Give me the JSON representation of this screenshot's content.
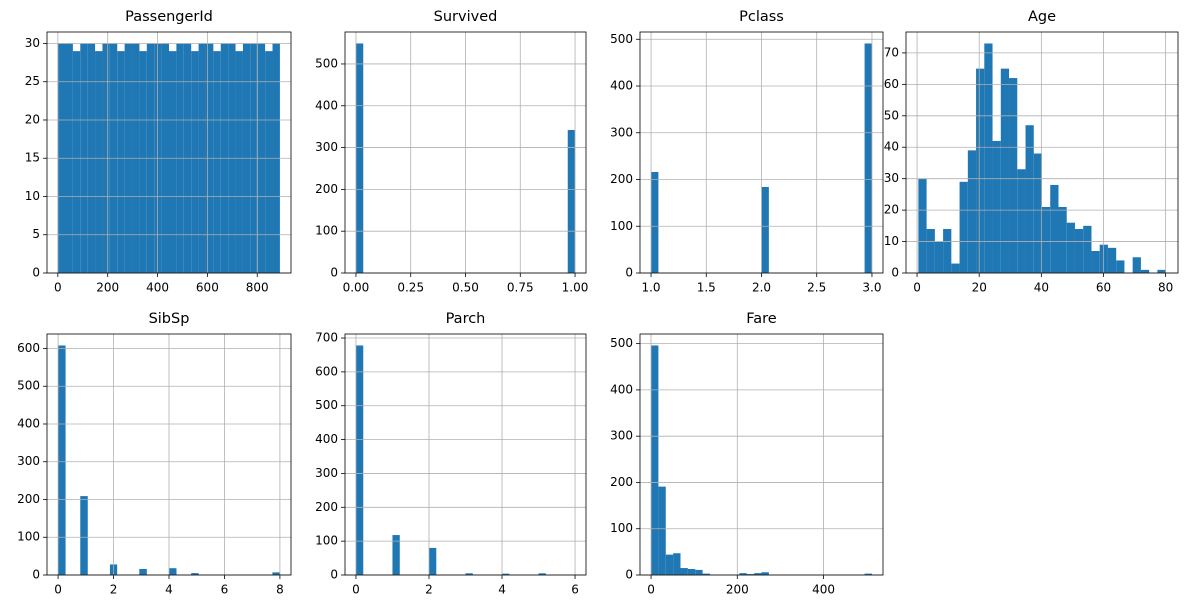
{
  "chart_data": [
    {
      "type": "histogram",
      "title": "PassengerId",
      "color": "#1f77b4",
      "grid": true,
      "bins": [
        1,
        30.67,
        60.33,
        90,
        119.67,
        149.33,
        179,
        208.67,
        238.33,
        268,
        297.67,
        327.33,
        357,
        386.67,
        416.33,
        446,
        475.67,
        505.33,
        535,
        564.67,
        594.33,
        624,
        653.67,
        683.33,
        713,
        742.67,
        772.33,
        802,
        831.67,
        861.33,
        891
      ],
      "values": [
        30,
        30,
        29,
        30,
        30,
        29,
        30,
        30,
        29,
        30,
        30,
        29,
        30,
        30,
        30,
        29,
        30,
        30,
        29,
        30,
        30,
        29,
        30,
        30,
        29,
        30,
        30,
        30,
        29,
        30
      ],
      "xlim": [
        -43.5,
        935.5
      ],
      "xticks": [
        0,
        200,
        400,
        600,
        800
      ],
      "ylim": [
        0,
        31.5
      ],
      "yticks": [
        0,
        5,
        10,
        15,
        20,
        25,
        30
      ]
    },
    {
      "type": "histogram",
      "title": "Survived",
      "color": "#1f77b4",
      "grid": true,
      "bins": [
        0,
        0.0333,
        0.0667,
        0.1,
        0.1333,
        0.1667,
        0.2,
        0.2333,
        0.2667,
        0.3,
        0.3333,
        0.3667,
        0.4,
        0.4333,
        0.4667,
        0.5,
        0.5333,
        0.5667,
        0.6,
        0.6333,
        0.6667,
        0.7,
        0.7333,
        0.7667,
        0.8,
        0.8333,
        0.8667,
        0.9,
        0.9333,
        0.9667,
        1
      ],
      "values": [
        549,
        0,
        0,
        0,
        0,
        0,
        0,
        0,
        0,
        0,
        0,
        0,
        0,
        0,
        0,
        0,
        0,
        0,
        0,
        0,
        0,
        0,
        0,
        0,
        0,
        0,
        0,
        0,
        0,
        342
      ],
      "xlim": [
        -0.05,
        1.05
      ],
      "xticks": [
        {
          "value": 0,
          "label": "0.00"
        },
        {
          "value": 0.25,
          "label": "0.25"
        },
        {
          "value": 0.5,
          "label": "0.50"
        },
        {
          "value": 0.75,
          "label": "0.75"
        },
        {
          "value": 1,
          "label": "1.00"
        }
      ],
      "ylim": [
        0,
        576.45
      ],
      "yticks": [
        0,
        100,
        200,
        300,
        400,
        500
      ]
    },
    {
      "type": "histogram",
      "title": "Pclass",
      "color": "#1f77b4",
      "grid": true,
      "bins": [
        1,
        1.0667,
        1.1333,
        1.2,
        1.2667,
        1.3333,
        1.4,
        1.4667,
        1.5333,
        1.6,
        1.6667,
        1.7333,
        1.8,
        1.8667,
        1.9333,
        2,
        2.0667,
        2.1333,
        2.2,
        2.2667,
        2.3333,
        2.4,
        2.4667,
        2.5333,
        2.6,
        2.6667,
        2.7333,
        2.8,
        2.8667,
        2.9333,
        3
      ],
      "values": [
        216,
        0,
        0,
        0,
        0,
        0,
        0,
        0,
        0,
        0,
        0,
        0,
        0,
        0,
        0,
        184,
        0,
        0,
        0,
        0,
        0,
        0,
        0,
        0,
        0,
        0,
        0,
        0,
        0,
        491
      ],
      "xlim": [
        0.9,
        3.1
      ],
      "xticks": [
        {
          "value": 1,
          "label": "1.0"
        },
        1.5,
        {
          "value": 2,
          "label": "2.0"
        },
        2.5,
        {
          "value": 3,
          "label": "3.0"
        }
      ],
      "ylim": [
        0,
        515.55
      ],
      "yticks": [
        0,
        100,
        200,
        300,
        400,
        500
      ]
    },
    {
      "type": "histogram",
      "title": "Age",
      "color": "#1f77b4",
      "grid": true,
      "bins": [
        0.42,
        3.07,
        5.73,
        8.38,
        11.03,
        13.68,
        16.34,
        18.99,
        21.64,
        24.29,
        26.95,
        29.6,
        32.25,
        34.91,
        37.56,
        40.21,
        42.86,
        45.52,
        48.17,
        50.82,
        53.47,
        56.13,
        58.78,
        61.43,
        64.09,
        66.74,
        69.39,
        72.04,
        74.7,
        77.35,
        80
      ],
      "values": [
        30,
        14,
        10,
        14,
        3,
        29,
        39,
        65,
        73,
        42,
        65,
        62,
        33,
        47,
        38,
        21,
        28,
        21,
        16,
        14,
        15,
        7,
        9,
        8,
        4,
        0,
        5,
        1,
        0,
        1
      ],
      "xlim": [
        -3.56,
        83.98
      ],
      "xticks": [
        0,
        20,
        40,
        60,
        80
      ],
      "ylim": [
        0,
        76.65
      ],
      "yticks": [
        0,
        10,
        20,
        30,
        40,
        50,
        60,
        70
      ]
    },
    {
      "type": "histogram",
      "title": "SibSp",
      "color": "#1f77b4",
      "grid": true,
      "bins": [
        0,
        0.27,
        0.53,
        0.8,
        1.07,
        1.33,
        1.6,
        1.87,
        2.13,
        2.4,
        2.67,
        2.93,
        3.2,
        3.47,
        3.73,
        4,
        4.27,
        4.53,
        4.8,
        5.07,
        5.33,
        5.6,
        5.87,
        6.13,
        6.4,
        6.67,
        6.93,
        7.2,
        7.47,
        7.73,
        8
      ],
      "values": [
        608,
        0,
        0,
        209,
        0,
        0,
        0,
        28,
        0,
        0,
        0,
        16,
        0,
        0,
        0,
        18,
        0,
        0,
        5,
        0,
        0,
        0,
        0,
        0,
        0,
        0,
        0,
        0,
        0,
        7
      ],
      "xlim": [
        -0.4,
        8.4
      ],
      "xticks": [
        0,
        2,
        4,
        6,
        8
      ],
      "ylim": [
        0,
        638.4
      ],
      "yticks": [
        0,
        100,
        200,
        300,
        400,
        500,
        600
      ]
    },
    {
      "type": "histogram",
      "title": "Parch",
      "color": "#1f77b4",
      "grid": true,
      "bins": [
        0,
        0.2,
        0.4,
        0.6,
        0.8,
        1,
        1.2,
        1.4,
        1.6,
        1.8,
        2,
        2.2,
        2.4,
        2.6,
        2.8,
        3,
        3.2,
        3.4,
        3.6,
        3.8,
        4,
        4.2,
        4.4,
        4.6,
        4.8,
        5,
        5.2,
        5.4,
        5.6,
        5.8,
        6
      ],
      "values": [
        678,
        0,
        0,
        0,
        0,
        118,
        0,
        0,
        0,
        0,
        80,
        0,
        0,
        0,
        0,
        5,
        0,
        0,
        0,
        0,
        4,
        0,
        0,
        0,
        0,
        5,
        0,
        0,
        0,
        1
      ],
      "xlim": [
        -0.3,
        6.3
      ],
      "xticks": [
        0,
        2,
        4,
        6
      ],
      "ylim": [
        0,
        711.9
      ],
      "yticks": [
        0,
        100,
        200,
        300,
        400,
        500,
        600,
        700
      ]
    },
    {
      "type": "histogram",
      "title": "Fare",
      "color": "#1f77b4",
      "grid": true,
      "bins": [
        0,
        17.08,
        34.16,
        51.23,
        68.31,
        85.39,
        102.47,
        119.54,
        136.62,
        153.7,
        170.78,
        187.86,
        204.93,
        222.01,
        239.09,
        256.17,
        273.24,
        290.32,
        307.4,
        324.48,
        341.55,
        358.63,
        375.71,
        392.79,
        409.86,
        426.94,
        444.02,
        461.1,
        478.17,
        495.25,
        512.33
      ],
      "values": [
        496,
        191,
        44,
        47,
        15,
        13,
        11,
        3,
        0,
        0,
        0,
        0,
        4,
        2,
        4,
        6,
        0,
        0,
        0,
        0,
        0,
        0,
        0,
        0,
        0,
        0,
        0,
        0,
        0,
        3
      ],
      "xlim": [
        -25.6,
        537.95
      ],
      "xticks": [
        0,
        200,
        400
      ],
      "ylim": [
        0,
        520.8
      ],
      "yticks": [
        0,
        100,
        200,
        300,
        400,
        500
      ]
    }
  ]
}
